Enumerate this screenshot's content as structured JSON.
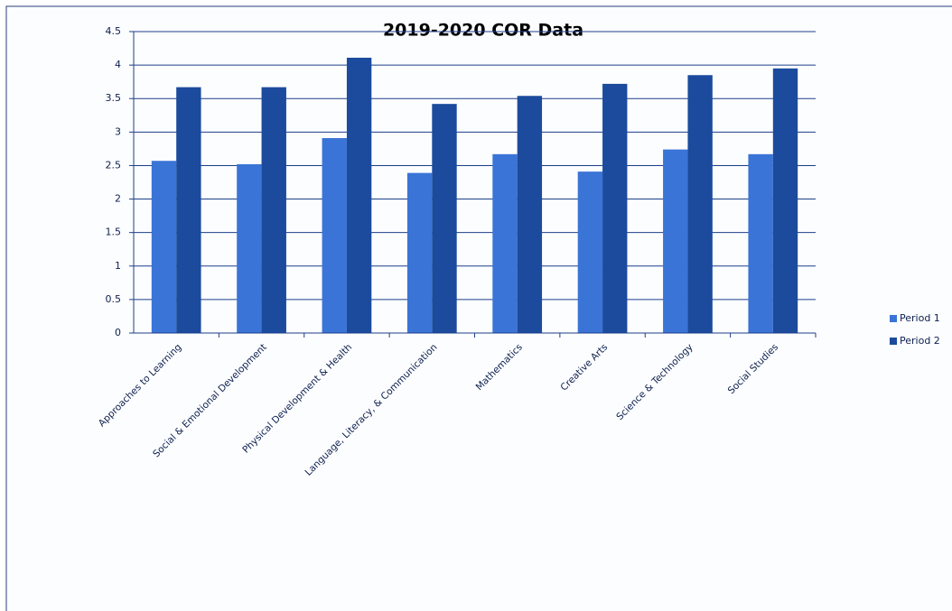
{
  "chart_data": {
    "type": "bar",
    "title": "2019-2020 COR Data",
    "categories": [
      "Approaches to Learning",
      "Social & Emotional Development",
      "Physical Development & Health",
      "Language, Literacy, & Communication",
      "Mathematics",
      "Creative Arts",
      "Science & Technology",
      "Social Studies"
    ],
    "series": [
      {
        "name": "Period 1",
        "color": "#3a74d6",
        "values": [
          2.57,
          2.52,
          2.91,
          2.39,
          2.67,
          2.41,
          2.74,
          2.67
        ]
      },
      {
        "name": "Period 2",
        "color": "#1c4b9d",
        "values": [
          3.67,
          3.67,
          4.11,
          3.42,
          3.54,
          3.72,
          3.85,
          3.95
        ]
      }
    ],
    "ylim": [
      0,
      4.5
    ],
    "yticks": [
      0,
      0.5,
      1,
      1.5,
      2,
      2.5,
      3,
      3.5,
      4,
      4.5
    ],
    "grid": true,
    "legend": "right"
  }
}
